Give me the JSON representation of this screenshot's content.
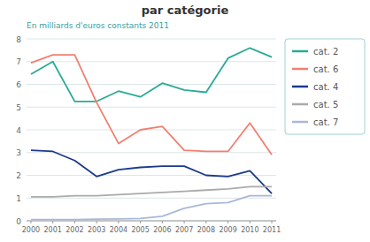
{
  "chart_data": {
    "type": "line",
    "title": "par catégorie",
    "subtitle": "En milliards d'euros constants 2011",
    "x": [
      2000,
      2001,
      2002,
      2003,
      2004,
      2005,
      2006,
      2007,
      2008,
      2009,
      2010,
      2011
    ],
    "series": [
      {
        "name": "cat. 2",
        "color": "#2aaa96",
        "values": [
          6.45,
          7.0,
          5.25,
          5.25,
          5.7,
          5.45,
          6.05,
          5.75,
          5.65,
          7.15,
          7.6,
          7.2
        ]
      },
      {
        "name": "cat. 6",
        "color": "#f08070",
        "values": [
          6.95,
          7.3,
          7.3,
          5.2,
          3.4,
          4.0,
          4.15,
          3.1,
          3.05,
          3.05,
          4.3,
          2.9
        ]
      },
      {
        "name": "cat. 4",
        "color": "#1a3a8c",
        "values": [
          3.1,
          3.05,
          2.65,
          1.95,
          2.25,
          2.35,
          2.4,
          2.4,
          2.0,
          1.95,
          2.2,
          1.2
        ]
      },
      {
        "name": "cat. 5",
        "color": "#aaaaaa",
        "values": [
          1.05,
          1.05,
          1.1,
          1.1,
          1.15,
          1.2,
          1.25,
          1.3,
          1.35,
          1.4,
          1.5,
          1.5
        ]
      },
      {
        "name": "cat. 7",
        "color": "#a8b8d8",
        "values": [
          0.05,
          0.05,
          0.05,
          0.07,
          0.08,
          0.1,
          0.2,
          0.55,
          0.75,
          0.8,
          1.1,
          1.1
        ]
      }
    ],
    "xlim": [
      1999.8,
      2011.2
    ],
    "xticks": [
      2000,
      2001,
      2002,
      2003,
      2004,
      2005,
      2006,
      2007,
      2008,
      2009,
      2010,
      2011
    ],
    "ylim": [
      0,
      8
    ],
    "yticks": [
      0,
      1,
      2,
      3,
      4,
      5,
      6,
      7,
      8
    ],
    "grid": true,
    "legend": "right"
  }
}
